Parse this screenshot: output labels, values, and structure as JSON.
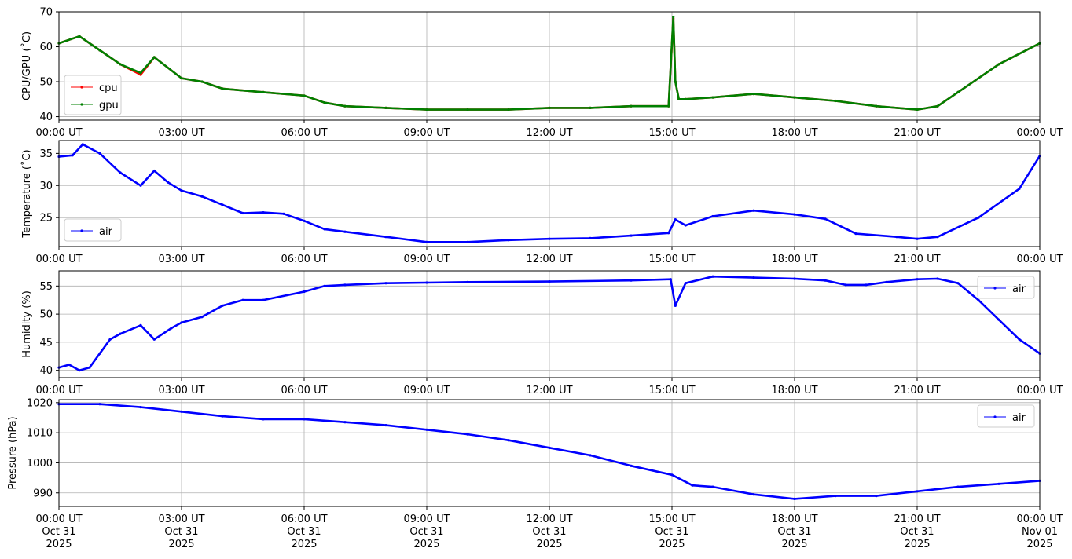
{
  "colors": {
    "cpu": "#ff0000",
    "gpu": "#008000",
    "air": "#0000ff",
    "grid": "#b0b0b0",
    "axes": "#000000"
  },
  "x_tick_labels": [
    "00:00 UT",
    "03:00 UT",
    "06:00 UT",
    "09:00 UT",
    "12:00 UT",
    "15:00 UT",
    "18:00 UT",
    "21:00 UT",
    "00:00 UT"
  ],
  "x_date_labels": [
    [
      "Oct 31",
      "2025"
    ],
    [
      "Oct 31",
      "2025"
    ],
    [
      "Oct 31",
      "2025"
    ],
    [
      "Oct 31",
      "2025"
    ],
    [
      "Oct 31",
      "2025"
    ],
    [
      "Oct 31",
      "2025"
    ],
    [
      "Oct 31",
      "2025"
    ],
    [
      "Oct 31",
      "2025"
    ],
    [
      "Nov 01",
      "2025"
    ]
  ],
  "chart_data": [
    {
      "type": "line",
      "ylabel": "CPU/GPU (˚C)",
      "ylim": [
        39,
        70
      ],
      "yticks": [
        40,
        50,
        60,
        70
      ],
      "legend": "lower-left",
      "grid": true,
      "x_range": [
        "2025-10-31 00:00",
        "2025-11-01 00:00"
      ],
      "x": [
        "00:00",
        "00:30",
        "01:00",
        "01:30",
        "02:00",
        "02:20",
        "03:00",
        "03:30",
        "04:00",
        "05:00",
        "06:00",
        "06:30",
        "07:00",
        "08:00",
        "09:00",
        "10:00",
        "11:00",
        "12:00",
        "13:00",
        "14:00",
        "14:55",
        "15:02",
        "15:05",
        "15:10",
        "15:20",
        "16:00",
        "17:00",
        "18:00",
        "19:00",
        "20:00",
        "21:00",
        "21:30",
        "22:00",
        "23:00",
        "24:00"
      ],
      "series": [
        {
          "name": "cpu",
          "values": [
            61,
            63,
            59,
            55,
            52,
            57,
            51,
            50,
            48,
            47,
            46,
            44,
            43,
            42.5,
            42,
            42,
            42,
            42.5,
            42.5,
            43,
            43,
            68,
            50,
            45,
            45,
            45.5,
            46.5,
            45.5,
            44.5,
            43,
            42,
            43,
            47,
            55,
            61
          ]
        },
        {
          "name": "gpu",
          "values": [
            61,
            63,
            59,
            55,
            52.5,
            57,
            51,
            50,
            48,
            47,
            46,
            44,
            43,
            42.5,
            42,
            42,
            42,
            42.5,
            42.5,
            43,
            43,
            68.5,
            50,
            45,
            45,
            45.5,
            46.5,
            45.5,
            44.5,
            43,
            42,
            43,
            47,
            55,
            61
          ]
        }
      ]
    },
    {
      "type": "line",
      "ylabel": "Temperature (˚C)",
      "ylim": [
        20.5,
        37
      ],
      "yticks": [
        25,
        30,
        35
      ],
      "legend": "lower-left",
      "grid": true,
      "x": [
        "00:00",
        "00:20",
        "00:35",
        "01:00",
        "01:30",
        "02:00",
        "02:20",
        "02:40",
        "03:00",
        "03:30",
        "04:00",
        "04:30",
        "05:00",
        "05:30",
        "06:00",
        "06:30",
        "07:00",
        "08:00",
        "09:00",
        "10:00",
        "11:00",
        "12:00",
        "13:00",
        "14:00",
        "14:55",
        "15:05",
        "15:20",
        "16:00",
        "17:00",
        "18:00",
        "18:45",
        "19:30",
        "20:30",
        "21:00",
        "21:30",
        "22:30",
        "23:30",
        "24:00"
      ],
      "series": [
        {
          "name": "air",
          "values": [
            34.5,
            34.7,
            36.4,
            35,
            32,
            30,
            32.3,
            30.5,
            29.2,
            28.3,
            27,
            25.7,
            25.8,
            25.6,
            24.5,
            23.2,
            22.8,
            22,
            21.2,
            21.2,
            21.5,
            21.7,
            21.8,
            22.2,
            22.6,
            24.7,
            23.8,
            25.2,
            26.1,
            25.5,
            24.8,
            22.5,
            22,
            21.7,
            22,
            25,
            29.5,
            34.6
          ]
        }
      ]
    },
    {
      "type": "line",
      "ylabel": "Humidity (%)",
      "ylim": [
        38.7,
        57.7
      ],
      "yticks": [
        40,
        45,
        50,
        55
      ],
      "legend": "upper-right",
      "grid": true,
      "x": [
        "00:00",
        "00:15",
        "00:30",
        "00:45",
        "01:00",
        "01:15",
        "01:30",
        "02:00",
        "02:20",
        "02:45",
        "03:00",
        "03:30",
        "04:00",
        "04:30",
        "05:00",
        "06:00",
        "06:30",
        "07:00",
        "08:00",
        "09:00",
        "10:00",
        "12:00",
        "14:00",
        "14:58",
        "15:05",
        "15:20",
        "16:00",
        "17:00",
        "18:00",
        "18:45",
        "19:15",
        "19:45",
        "20:15",
        "21:00",
        "21:30",
        "22:00",
        "22:30",
        "23:00",
        "23:30",
        "24:00"
      ],
      "series": [
        {
          "name": "air",
          "values": [
            40.5,
            41,
            40,
            40.5,
            43,
            45.5,
            46.5,
            48,
            45.5,
            47.5,
            48.5,
            49.5,
            51.5,
            52.5,
            52.5,
            54,
            55,
            55.2,
            55.5,
            55.6,
            55.7,
            55.8,
            56,
            56.2,
            51.5,
            55.5,
            56.7,
            56.5,
            56.3,
            56,
            55.2,
            55.2,
            55.7,
            56.2,
            56.3,
            55.5,
            52.5,
            49,
            45.5,
            43
          ]
        }
      ]
    },
    {
      "type": "line",
      "ylabel": "Pressure (hPa)",
      "ylim": [
        985.5,
        1021
      ],
      "yticks": [
        990,
        1000,
        1010,
        1020
      ],
      "legend": "upper-right",
      "grid": true,
      "x": [
        "00:00",
        "01:00",
        "02:00",
        "03:00",
        "04:00",
        "05:00",
        "06:00",
        "07:00",
        "08:00",
        "09:00",
        "10:00",
        "11:00",
        "12:00",
        "13:00",
        "14:00",
        "15:00",
        "15:30",
        "16:00",
        "17:00",
        "18:00",
        "19:00",
        "20:00",
        "21:00",
        "22:00",
        "23:00",
        "24:00"
      ],
      "series": [
        {
          "name": "air",
          "values": [
            1019.5,
            1019.5,
            1018.5,
            1017,
            1015.5,
            1014.5,
            1014.5,
            1013.5,
            1012.5,
            1011,
            1009.5,
            1007.5,
            1005,
            1002.5,
            999,
            996,
            992.5,
            992,
            989.5,
            988,
            989,
            989,
            990.5,
            992,
            993,
            994
          ]
        }
      ]
    }
  ]
}
